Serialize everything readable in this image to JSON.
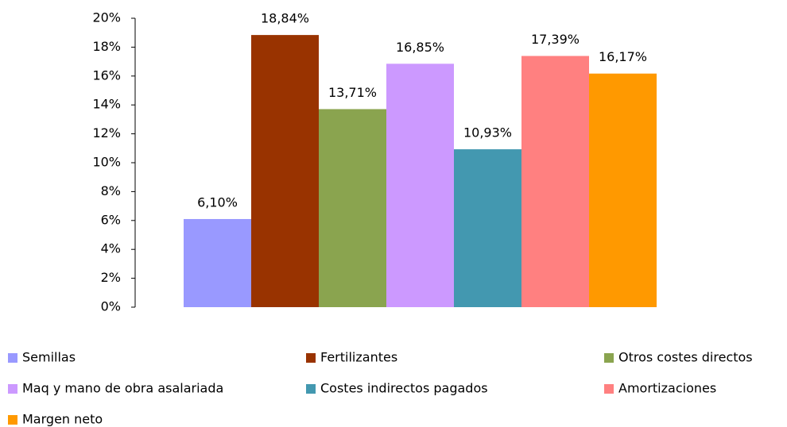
{
  "chart_data": {
    "type": "bar",
    "series": [
      {
        "name": "Semillas",
        "color": "#9999ff",
        "values": [
          6.1
        ],
        "value_labels": [
          "6,10%"
        ]
      },
      {
        "name": "Fertilizantes",
        "color": "#993300",
        "values": [
          18.84
        ],
        "value_labels": [
          "18,84%"
        ]
      },
      {
        "name": "Otros costes directos",
        "color": "#8aa44f",
        "values": [
          13.71
        ],
        "value_labels": [
          "13,71%"
        ]
      },
      {
        "name": "Maq y mano de obra asalariada",
        "color": "#cc99ff",
        "values": [
          16.85
        ],
        "value_labels": [
          "16,85%"
        ]
      },
      {
        "name": "Costes indirectos pagados",
        "color": "#4398b0",
        "values": [
          10.93
        ],
        "value_labels": [
          "10,93%"
        ]
      },
      {
        "name": "Amortizaciones",
        "color": "#ff8080",
        "values": [
          17.39
        ],
        "value_labels": [
          "17,39%"
        ]
      },
      {
        "name": "Margen neto",
        "color": "#ff9900",
        "values": [
          16.17
        ],
        "value_labels": [
          "16,17%"
        ]
      }
    ],
    "ylim": [
      0,
      20
    ],
    "yticks": [
      {
        "value": 0,
        "label": "0%"
      },
      {
        "value": 2,
        "label": "2%"
      },
      {
        "value": 4,
        "label": "4%"
      },
      {
        "value": 6,
        "label": "6%"
      },
      {
        "value": 8,
        "label": "8%"
      },
      {
        "value": 10,
        "label": "10%"
      },
      {
        "value": 12,
        "label": "12%"
      },
      {
        "value": 14,
        "label": "14%"
      },
      {
        "value": 16,
        "label": "16%"
      },
      {
        "value": 18,
        "label": "18%"
      },
      {
        "value": 20,
        "label": "20%"
      }
    ],
    "legend": "bottom"
  }
}
